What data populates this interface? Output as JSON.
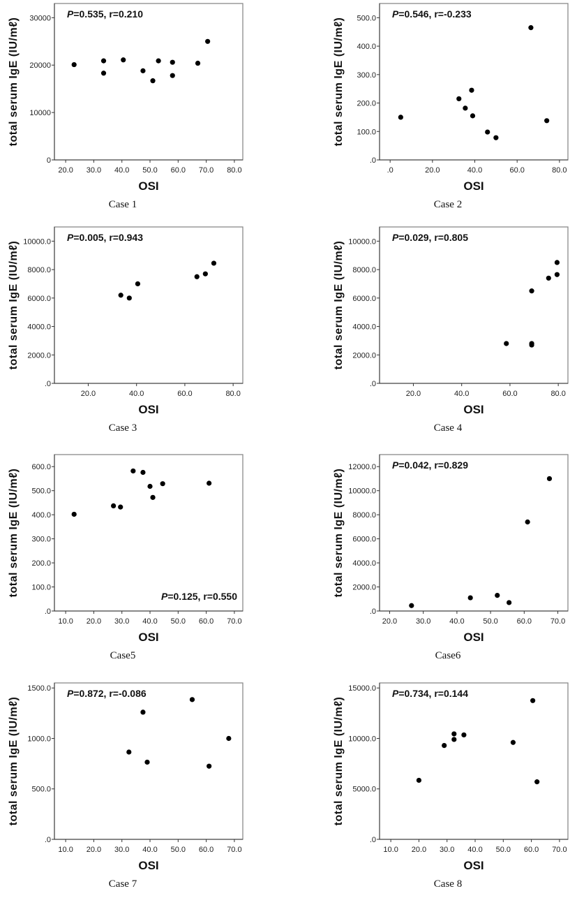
{
  "chart_data": [
    {
      "type": "scatter",
      "caption": "Case 1",
      "xlabel": "OSI",
      "ylabel": "total serum IgE (IU/mℓ)",
      "annotation": {
        "p_symbol": "P",
        "text": "=0.535,  r=0.210",
        "placement": "top-left"
      },
      "xlim": [
        16,
        83
      ],
      "ylim": [
        0,
        33000
      ],
      "xticks": [
        20,
        30,
        40,
        50,
        60,
        70,
        80
      ],
      "xtick_labels": [
        "20.0",
        "30.0",
        "40.0",
        "50.0",
        "60.0",
        "70.0",
        "80.0"
      ],
      "yticks": [
        0,
        10000,
        20000,
        30000
      ],
      "ytick_labels": [
        "0",
        "10000",
        "20000",
        "30000"
      ],
      "points": [
        [
          23,
          20100
        ],
        [
          33.5,
          20900
        ],
        [
          33.5,
          18300
        ],
        [
          40.5,
          21100
        ],
        [
          47.5,
          18800
        ],
        [
          51,
          16700
        ],
        [
          53,
          20900
        ],
        [
          58,
          20600
        ],
        [
          58,
          17800
        ],
        [
          67,
          20400
        ],
        [
          70.5,
          25000
        ]
      ]
    },
    {
      "type": "scatter",
      "caption": "Case 2",
      "xlabel": "OSI",
      "ylabel": "total serum IgE (IU/mℓ)",
      "annotation": {
        "p_symbol": "P",
        "text": "=0.546,  r=-0.233",
        "placement": "top-left"
      },
      "xlim": [
        -5,
        84
      ],
      "ylim": [
        0,
        550
      ],
      "xticks": [
        0,
        20,
        40,
        60,
        80
      ],
      "xtick_labels": [
        ".0",
        "20.0",
        "40.0",
        "60.0",
        "80.0"
      ],
      "yticks": [
        0,
        100,
        200,
        300,
        400,
        500
      ],
      "ytick_labels": [
        ".0",
        "100.0",
        "200.0",
        "300.0",
        "400.0",
        "500.0"
      ],
      "points": [
        [
          5,
          150
        ],
        [
          32.5,
          215
        ],
        [
          35.5,
          182
        ],
        [
          38.5,
          245
        ],
        [
          39,
          155
        ],
        [
          46,
          98
        ],
        [
          50,
          78
        ],
        [
          66.5,
          465
        ],
        [
          74,
          138
        ]
      ]
    },
    {
      "type": "scatter",
      "caption": "Case 3",
      "xlabel": "OSI",
      "ylabel": "total serum IgE (IU/mℓ)",
      "annotation": {
        "p_symbol": "P",
        "text": "=0.005,  r=0.943",
        "placement": "top-left"
      },
      "xlim": [
        6,
        84
      ],
      "ylim": [
        0,
        11000
      ],
      "xticks": [
        20,
        40,
        60,
        80
      ],
      "xtick_labels": [
        "20.0",
        "40.0",
        "60.0",
        "80.0"
      ],
      "yticks": [
        0,
        2000,
        4000,
        6000,
        8000,
        10000
      ],
      "ytick_labels": [
        ".0",
        "2000.0",
        "4000.0",
        "6000.0",
        "8000.0",
        "10000.0"
      ],
      "points": [
        [
          33.5,
          6200
        ],
        [
          37,
          6000
        ],
        [
          40.5,
          7000
        ],
        [
          65,
          7500
        ],
        [
          68.5,
          7700
        ],
        [
          72,
          8450
        ]
      ]
    },
    {
      "type": "scatter",
      "caption": "Case 4",
      "xlabel": "OSI",
      "ylabel": "total serum IgE (IU/mℓ)",
      "annotation": {
        "p_symbol": "P",
        "text": "=0.029,  r=0.805",
        "placement": "top-left"
      },
      "xlim": [
        6,
        84
      ],
      "ylim": [
        0,
        11000
      ],
      "xticks": [
        20,
        40,
        60,
        80
      ],
      "xtick_labels": [
        "20.0",
        "40.0",
        "60.0",
        "80.0"
      ],
      "yticks": [
        0,
        2000,
        4000,
        6000,
        8000,
        10000
      ],
      "ytick_labels": [
        ".0",
        "2000.0",
        "4000.0",
        "6000.0",
        "8000.0",
        "10000.0"
      ],
      "points": [
        [
          58.5,
          2800
        ],
        [
          69,
          6500
        ],
        [
          69,
          2800
        ],
        [
          69,
          2700
        ],
        [
          76,
          7400
        ],
        [
          79.5,
          8500
        ],
        [
          79.5,
          7650
        ]
      ]
    },
    {
      "type": "scatter",
      "caption": "Case5",
      "xlabel": "OSI",
      "ylabel": "total serum IgE (IU/mℓ)",
      "annotation": {
        "p_symbol": "P",
        "text": "=0.125,  r=0.550",
        "placement": "bottom-right"
      },
      "xlim": [
        6,
        73
      ],
      "ylim": [
        0,
        650
      ],
      "xticks": [
        10,
        20,
        30,
        40,
        50,
        60,
        70
      ],
      "xtick_labels": [
        "10.0",
        "20.0",
        "30.0",
        "40.0",
        "50.0",
        "60.0",
        "70.0"
      ],
      "yticks": [
        0,
        100,
        200,
        300,
        400,
        500,
        600
      ],
      "ytick_labels": [
        ".0",
        "100.0",
        "200.0",
        "300.0",
        "400.0",
        "500.0",
        "600.0"
      ],
      "points": [
        [
          13,
          402
        ],
        [
          27,
          437
        ],
        [
          29.5,
          432
        ],
        [
          34,
          582
        ],
        [
          37.5,
          576
        ],
        [
          40,
          518
        ],
        [
          41,
          472
        ],
        [
          44.5,
          529
        ],
        [
          61,
          531
        ]
      ]
    },
    {
      "type": "scatter",
      "caption": "Case6",
      "xlabel": "OSI",
      "ylabel": "total serum IgE (IU/mℓ)",
      "annotation": {
        "p_symbol": "P",
        "text": "=0.042,  r=0.829",
        "placement": "top-left"
      },
      "xlim": [
        17,
        73
      ],
      "ylim": [
        0,
        13000
      ],
      "xticks": [
        20,
        30,
        40,
        50,
        60,
        70
      ],
      "xtick_labels": [
        "20.0",
        "30.0",
        "40.0",
        "50.0",
        "60.0",
        "70.0"
      ],
      "yticks": [
        0,
        2000,
        4000,
        6000,
        8000,
        10000,
        12000
      ],
      "ytick_labels": [
        ".0",
        "2000.0",
        "4000.0",
        "6000.0",
        "8000.0",
        "10000.0",
        "12000.0"
      ],
      "points": [
        [
          26.5,
          450
        ],
        [
          44,
          1100
        ],
        [
          52,
          1300
        ],
        [
          55.5,
          700
        ],
        [
          61,
          7400
        ],
        [
          67.5,
          11000
        ]
      ]
    },
    {
      "type": "scatter",
      "caption": "Case 7",
      "xlabel": "OSI",
      "ylabel": "total serum IgE (IU/mℓ)",
      "annotation": {
        "p_symbol": "P",
        "text": "=0.872,  r=-0.086",
        "placement": "top-left"
      },
      "xlim": [
        6,
        73
      ],
      "ylim": [
        0,
        1550
      ],
      "xticks": [
        10,
        20,
        30,
        40,
        50,
        60,
        70
      ],
      "xtick_labels": [
        "10.0",
        "20.0",
        "30.0",
        "40.0",
        "50.0",
        "60.0",
        "70.0"
      ],
      "yticks": [
        0,
        500,
        1000,
        1500
      ],
      "ytick_labels": [
        ".0",
        "500.0",
        "1000.0",
        "1500.0"
      ],
      "points": [
        [
          32.5,
          865
        ],
        [
          37.5,
          1260
        ],
        [
          39,
          765
        ],
        [
          55,
          1385
        ],
        [
          61,
          725
        ],
        [
          68,
          1000
        ]
      ]
    },
    {
      "type": "scatter",
      "caption": "Case 8",
      "xlabel": "OSI",
      "ylabel": "total serum IgE (IU/mℓ)",
      "annotation": {
        "p_symbol": "P",
        "text": "=0.734,  r=0.144",
        "placement": "top-left"
      },
      "xlim": [
        6,
        73
      ],
      "ylim": [
        0,
        15500
      ],
      "xticks": [
        10,
        20,
        30,
        40,
        50,
        60,
        70
      ],
      "xtick_labels": [
        "10.0",
        "20.0",
        "30.0",
        "40.0",
        "50.0",
        "60.0",
        "70.0"
      ],
      "yticks": [
        0,
        5000,
        10000,
        15000
      ],
      "ytick_labels": [
        ".0",
        "5000.0",
        "10000.0",
        "15000.0"
      ],
      "points": [
        [
          20,
          5850
        ],
        [
          29,
          9300
        ],
        [
          32.5,
          10450
        ],
        [
          32.5,
          9900
        ],
        [
          36,
          10350
        ],
        [
          53.5,
          9600
        ],
        [
          60.5,
          13750
        ],
        [
          62,
          5700
        ]
      ]
    }
  ]
}
